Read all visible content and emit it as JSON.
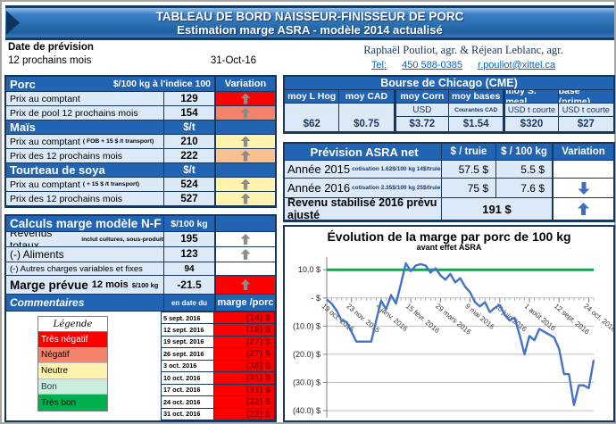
{
  "header": {
    "line1": "TABLEAU DE BORD NAISSEUR-FINISSEUR DE PORC",
    "line2": "Estimation marge ASRA - modèle 2014 actualisé"
  },
  "info": {
    "date_label": "Date de prévision",
    "period_label": "12 prochains mois",
    "date_value": "31-Oct-16",
    "authors": "Raphaël Pouliot, agr.   &   Réjean Leblanc, agr.",
    "tel_label": "Tel:",
    "tel_number": "450 588-0385",
    "email": "r.pouliot@xittel.ca"
  },
  "palette": {
    "header_blue": "#2264B4",
    "navy_border": "#17375D",
    "cell_light_blue": "#DCE9F7",
    "very_negative": "#FF0000",
    "negative": "#F4836C",
    "neutral": "#FFF3AD",
    "neutral_warm": "#FAC08F",
    "good": "#C9EEDB",
    "very_good": "#00B050",
    "gray_arrow": "#8C8C8C",
    "blue_arrow": "#3E6FBE"
  },
  "prices": {
    "title": "Porc",
    "unit": "$/100 kg à l'indice 100",
    "variation": "Variation",
    "sections": {
      "mais": {
        "title": "Maïs",
        "unit": "$/t"
      },
      "soya": {
        "title": "Tourteau de soya",
        "unit": "$/t"
      }
    },
    "rows": [
      {
        "label": "Prix au comptant",
        "value": "129",
        "var_bg": "#FF0000",
        "arrow": "#8C8C8C"
      },
      {
        "label": "Prix de pool 12 prochains mois",
        "value": "154",
        "var_bg": "#F4836C",
        "arrow": "#8C8C8C"
      },
      {
        "label": "Prix au comptant",
        "sublabel": "( FOB + 15 $ /t transport)",
        "value": "210",
        "var_bg": "#FFF3AD",
        "arrow": "#8C8C8C"
      },
      {
        "label": "Prix des 12 prochains mois",
        "value": "222",
        "var_bg": "#FAC08F",
        "arrow": "#8C8C8C"
      },
      {
        "label": "Prix au comptant",
        "sublabel": "( + 15 $ /t transport)",
        "value": "524",
        "var_bg": "#FFF3AD",
        "arrow": "#8C8C8C"
      },
      {
        "label": "Prix des 12 prochains mois",
        "value": "527",
        "var_bg": "#FFF3AD",
        "arrow": "#8C8C8C"
      }
    ]
  },
  "marge": {
    "title": "Calculs marge  modèle N-F",
    "unit": "$/100 kg",
    "rows": [
      {
        "label": "Revenus totaux",
        "sublabel": "inclut cultures, sous-produit",
        "value": "195",
        "var_bg": "#FFFFFF",
        "arrow": "#8C8C8C"
      },
      {
        "label": "(-) Aliments",
        "value": "123",
        "var_bg": "#FFFFFF",
        "arrow": "#8C8C8C"
      },
      {
        "label": "(-) Autres charges variables et fixes",
        "value": "94",
        "var_bg": "#FFFFFF"
      },
      {
        "label": "Marge prévue",
        "mid": "12 mois",
        "sublabel": "$/100 kg",
        "value": "-21.5",
        "var_bg": "#FF0000",
        "arrow": "#8C8C8C"
      }
    ],
    "comments": "Commentaires",
    "date_col": "en date du",
    "value_col": "marge /porc"
  },
  "legend": {
    "title": "Légende",
    "items": [
      {
        "label": "Très négatif",
        "color": "#FF0000",
        "text": "#FFFFFF"
      },
      {
        "label": "Négatif",
        "color": "#F4836C",
        "text": "#000000"
      },
      {
        "label": "Neutre",
        "color": "#FFF3AD",
        "text": "#000000"
      },
      {
        "label": "Bon",
        "color": "#C9EEDB",
        "text": "#1F3864"
      },
      {
        "label": "Très bon",
        "color": "#00B050",
        "text": "#000000"
      }
    ]
  },
  "weekly": {
    "rows": [
      {
        "date": "5 sept. 2016",
        "value": "(14) $"
      },
      {
        "date": "12 sept. 2016",
        "value": "(18) $"
      },
      {
        "date": "19 sept. 2016",
        "value": "(27) $"
      },
      {
        "date": "26 sept. 2016",
        "value": "(27) $"
      },
      {
        "date": "3 oct. 2016",
        "value": "(38) $"
      },
      {
        "date": "10 oct. 2016",
        "value": "(31) $"
      },
      {
        "date": "17 oct. 2016",
        "value": "(31) $"
      },
      {
        "date": "24 oct. 2016",
        "value": "(32) $"
      },
      {
        "date": "31 oct. 2016",
        "value": "(22) $"
      }
    ]
  },
  "cme": {
    "title": "Bourse de Chicago (CME)",
    "cols": [
      {
        "header": "moy L Hog",
        "sub": "",
        "value": "$62"
      },
      {
        "header": "moy CAD",
        "sub": "",
        "value": "$0.75"
      },
      {
        "header": "moy Corn",
        "sub": "USD",
        "value": "$3.72"
      },
      {
        "header": "moy bases",
        "sub": "Courantes CAD",
        "value": "$1.54"
      },
      {
        "header": "moy S. meal",
        "sub": "USD t courte",
        "value": "$320"
      },
      {
        "header": "base (prime)",
        "sub": "USD t courte",
        "value": "$27"
      }
    ]
  },
  "asra": {
    "title": "Prévision ASRA net",
    "col_truie": "$ / truie",
    "col_kg": "$ / 100 kg",
    "col_var": "Variation",
    "rows": [
      {
        "label": "Année 2015",
        "sublabel": "cotisation 1.62$/100 kg  14$/truie",
        "truie": "57.5  $",
        "kg": "5.5  $"
      },
      {
        "label": "Année 2016",
        "sublabel": "cotisation 2.35$/100 kg  25$/truie",
        "truie": "75  $",
        "kg": "7.6  $",
        "arrow": "#3E6FBE"
      }
    ],
    "footer": {
      "label": "Revenu stabilisé 2016 prévu ajusté",
      "value": "191  $",
      "arrow": "#3E6FBE"
    }
  },
  "chart_data": {
    "type": "line",
    "title": "Évolution de la marge par porc de 100 kg",
    "subtitle": "avant effet ASRA",
    "ylabel": "$ / 100 kg",
    "ylim": [
      -42.5,
      14.5
    ],
    "grid": true,
    "series_color": "#4472C4",
    "reference_line": 10,
    "reference_color": "#00B050",
    "y_ticks": [
      {
        "v": 10,
        "label": "10.0 $"
      },
      {
        "v": 0,
        "label": "-    $"
      },
      {
        "v": -10,
        "label": "(10.0) $"
      },
      {
        "v": -20,
        "label": "(20.0) $"
      },
      {
        "v": -30,
        "label": "(30.0) $"
      },
      {
        "v": -40,
        "label": "(40.0) $"
      }
    ],
    "x_ticks": [
      {
        "i": 0,
        "label": "19 oct. 2015"
      },
      {
        "i": 5,
        "label": "23 nov. 2015"
      },
      {
        "i": 11,
        "label": "4 janv. 2016"
      },
      {
        "i": 17,
        "label": "15 févr. 2016"
      },
      {
        "i": 23,
        "label": "29 mars 2016"
      },
      {
        "i": 29,
        "label": "9 mai 2016"
      },
      {
        "i": 35,
        "label": "20 juin 2016"
      },
      {
        "i": 41,
        "label": "1 août 2016"
      },
      {
        "i": 47,
        "label": "12 sept. 2016"
      },
      {
        "i": 53,
        "label": "24 oct. 2016"
      }
    ],
    "values": [
      -0.5,
      -2,
      -4.5,
      -8,
      -8.5,
      -12,
      -15.5,
      -15.5,
      -15.5,
      -15.5,
      -8,
      -1,
      -4,
      1,
      -2,
      5,
      12.3,
      9.5,
      11.5,
      12,
      11.5,
      9,
      10.5,
      8,
      6.5,
      8.5,
      5.5,
      7,
      4,
      2,
      -1.5,
      -3,
      -1.5,
      -5,
      -3.5,
      -2.5,
      -6,
      -8,
      -7,
      -13,
      -20,
      -13.5,
      -15,
      -11,
      -12,
      -13,
      -14,
      -18,
      -27,
      -27,
      -38,
      -31,
      -31,
      -32,
      -22
    ]
  }
}
